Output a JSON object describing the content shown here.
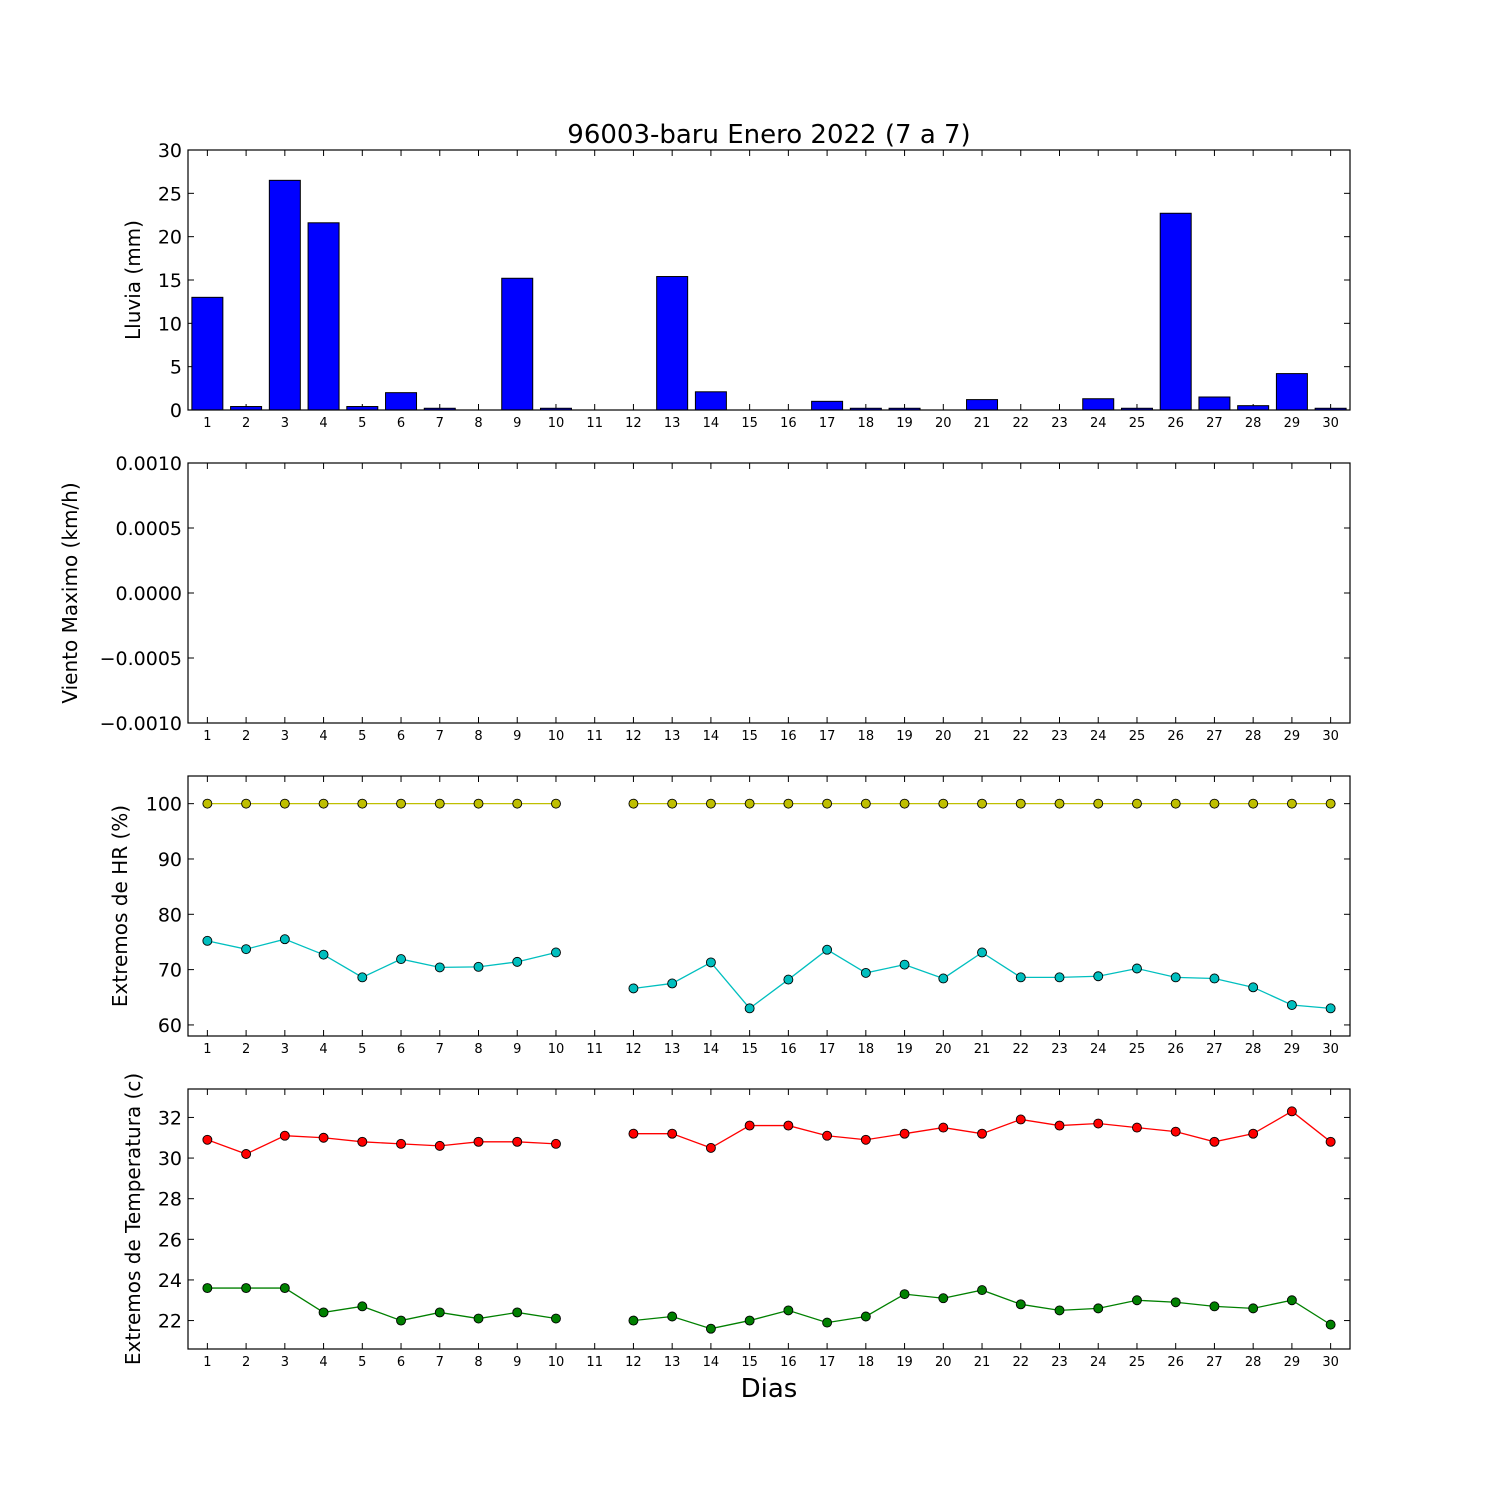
{
  "title": "96003-baru Enero 2022  (7 a 7)",
  "xlabel": "Dias",
  "chart_data": [
    {
      "type": "bar",
      "ylabel": "Lluvia (mm)",
      "ylim": [
        0,
        30
      ],
      "yticks": [
        "0",
        "5",
        "10",
        "15",
        "20",
        "25",
        "30"
      ],
      "categories": [
        "1",
        "2",
        "3",
        "4",
        "5",
        "6",
        "7",
        "8",
        "9",
        "10",
        "11",
        "12",
        "13",
        "14",
        "15",
        "16",
        "17",
        "18",
        "19",
        "20",
        "21",
        "22",
        "23",
        "24",
        "25",
        "26",
        "27",
        "28",
        "29",
        "30"
      ],
      "series": [
        {
          "color": "#0000ff",
          "values": [
            13.0,
            0.4,
            26.5,
            21.6,
            0.4,
            2.0,
            0.2,
            0.0,
            15.2,
            0.2,
            0.0,
            0.0,
            15.4,
            2.1,
            0.0,
            0.0,
            1.0,
            0.2,
            0.2,
            0.0,
            1.2,
            0.0,
            0.0,
            1.3,
            0.2,
            22.7,
            1.5,
            0.5,
            4.2,
            0.2
          ]
        }
      ]
    },
    {
      "type": "line",
      "ylabel": "Viento Maximo (km/h)",
      "ylim": [
        -0.001,
        0.001
      ],
      "yticks": [
        "−0.0010",
        "−0.0005",
        "0.0000",
        "0.0005",
        "0.0010"
      ],
      "categories": [
        "1",
        "2",
        "3",
        "4",
        "5",
        "6",
        "7",
        "8",
        "9",
        "10",
        "11",
        "12",
        "13",
        "14",
        "15",
        "16",
        "17",
        "18",
        "19",
        "20",
        "21",
        "22",
        "23",
        "24",
        "25",
        "26",
        "27",
        "28",
        "29",
        "30"
      ],
      "series": []
    },
    {
      "type": "line",
      "ylabel": "Extremos de HR (%)",
      "ylim": [
        58,
        105
      ],
      "yticks": [
        "60",
        "70",
        "80",
        "90",
        "100"
      ],
      "categories": [
        "1",
        "2",
        "3",
        "4",
        "5",
        "6",
        "7",
        "8",
        "9",
        "10",
        "11",
        "12",
        "13",
        "14",
        "15",
        "16",
        "17",
        "18",
        "19",
        "20",
        "21",
        "22",
        "23",
        "24",
        "25",
        "26",
        "27",
        "28",
        "29",
        "30"
      ],
      "series": [
        {
          "color": "#bfbf00",
          "values": [
            100,
            100,
            100,
            100,
            100,
            100,
            100,
            100,
            100,
            100,
            null,
            100,
            100,
            100,
            100,
            100,
            100,
            100,
            100,
            100,
            100,
            100,
            100,
            100,
            100,
            100,
            100,
            100,
            100,
            100
          ]
        },
        {
          "color": "#00bfbf",
          "values": [
            75.2,
            73.7,
            75.5,
            72.7,
            68.6,
            71.9,
            70.4,
            70.5,
            71.4,
            73.1,
            null,
            66.6,
            67.5,
            71.3,
            63.0,
            68.2,
            73.6,
            69.4,
            70.9,
            68.4,
            73.1,
            68.6,
            68.6,
            68.8,
            70.2,
            68.6,
            68.4,
            66.8,
            63.6,
            63.0
          ]
        }
      ]
    },
    {
      "type": "line",
      "ylabel": "Extremos de Temperatura (c)",
      "ylim": [
        20.6,
        33.4
      ],
      "yticks": [
        "22",
        "24",
        "26",
        "28",
        "30",
        "32"
      ],
      "categories": [
        "1",
        "2",
        "3",
        "4",
        "5",
        "6",
        "7",
        "8",
        "9",
        "10",
        "11",
        "12",
        "13",
        "14",
        "15",
        "16",
        "17",
        "18",
        "19",
        "20",
        "21",
        "22",
        "23",
        "24",
        "25",
        "26",
        "27",
        "28",
        "29",
        "30"
      ],
      "series": [
        {
          "color": "#ff0000",
          "values": [
            30.9,
            30.2,
            31.1,
            31.0,
            30.8,
            30.7,
            30.6,
            30.8,
            30.8,
            30.7,
            null,
            31.2,
            31.2,
            30.5,
            31.6,
            31.6,
            31.1,
            30.9,
            31.2,
            31.5,
            31.2,
            31.9,
            31.6,
            31.7,
            31.5,
            31.3,
            30.8,
            31.2,
            32.3,
            30.8
          ]
        },
        {
          "color": "#008000",
          "values": [
            23.6,
            23.6,
            23.6,
            22.4,
            22.7,
            22.0,
            22.4,
            22.1,
            22.4,
            22.1,
            null,
            22.0,
            22.2,
            21.6,
            22.0,
            22.5,
            21.9,
            22.2,
            23.3,
            23.1,
            23.5,
            22.8,
            22.5,
            22.6,
            23.0,
            22.9,
            22.7,
            22.6,
            23.0,
            21.8
          ]
        }
      ]
    }
  ]
}
